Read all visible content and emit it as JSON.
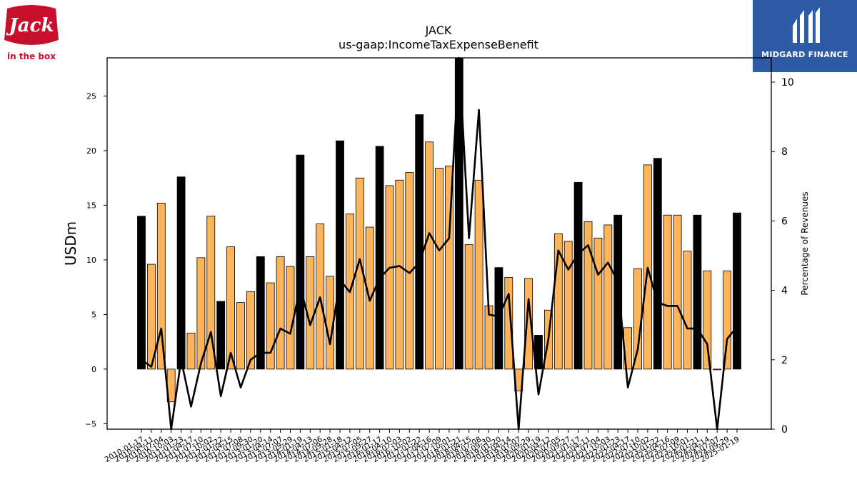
{
  "title": "JACK",
  "subtitle": "us-gaap:IncomeTaxExpenseBenefit",
  "logos": {
    "left_brand": "Jack",
    "left_tagline": "in the box",
    "right_brand": "MIDGARD FINANCE"
  },
  "colors": {
    "annual_bar": "#000000",
    "quarter_bar": "#ffb35a",
    "line": "#000000",
    "brand_red": "#c8102e",
    "brand_blue": "#2d5ba6"
  },
  "chart_data": {
    "type": "bar",
    "ylabel": "USDm",
    "y2label": "Percentage of Revenues",
    "ylim": [
      -5.5,
      28.5
    ],
    "y2lim": [
      0,
      10.7
    ],
    "yticks": [
      -5,
      0,
      5,
      10,
      15,
      20,
      25
    ],
    "y2ticks": [
      0,
      2,
      4,
      6,
      8,
      10
    ],
    "tick_labels": [
      "2010-01-17",
      "2010-04-11",
      "2010-07-04",
      "2010-10-03",
      "2011-01-23",
      "2011-04-17",
      "2011-07-10",
      "2011-10-02",
      "2012-01-22",
      "2012-04-15",
      "2012-07-08",
      "2012-09-30",
      "2013-01-20",
      "2013-04-14",
      "2013-07-07",
      "2013-09-29",
      "2014-01-19",
      "2014-04-13",
      "2014-07-06",
      "2014-09-28",
      "2015-01-18",
      "2015-04-12",
      "2015-07-05",
      "2015-09-27",
      "2016-01-17",
      "2016-04-10",
      "2016-07-03",
      "2016-10-02",
      "2017-01-22",
      "2017-04-16",
      "2017-07-09",
      "2017-10-01",
      "2018-01-21",
      "2018-04-15",
      "2018-07-08",
      "2018-09-30",
      "2019-01-20",
      "2019-04-14",
      "2019-07-07",
      "2019-09-29",
      "2020-01-19",
      "2020-04-12",
      "2020-07-05",
      "2020-09-27",
      "2021-01-17",
      "2021-04-11",
      "2021-07-04",
      "2021-10-03",
      "2022-01-23",
      "2022-04-17",
      "2022-07-10",
      "2022-10-02",
      "2023-01-22",
      "2023-04-16",
      "2023-07-09",
      "2023-10-01",
      "2024-01-21",
      "2024-04-14",
      "2024-07-07",
      "2024-09-29",
      "2025-01-19"
    ],
    "values": [
      14.0,
      9.6,
      15.2,
      -3.0,
      17.6,
      3.3,
      10.2,
      14.0,
      6.2,
      11.2,
      6.1,
      7.1,
      10.3,
      7.9,
      10.3,
      9.4,
      19.6,
      10.3,
      13.3,
      8.5,
      20.9,
      14.2,
      17.5,
      13.0,
      20.4,
      16.8,
      17.3,
      18.0,
      23.3,
      20.8,
      18.4,
      18.6,
      28.5,
      11.4,
      17.3,
      5.8,
      9.3,
      8.4,
      -2.0,
      8.3,
      3.1,
      5.4,
      12.4,
      11.7,
      17.1,
      13.5,
      12.0,
      13.2,
      14.1,
      3.8,
      9.2,
      18.7,
      19.3,
      14.1,
      14.1,
      10.8,
      14.1,
      9.0,
      0.0,
      9.0,
      14.3
    ],
    "annual": [
      1,
      0,
      0,
      0,
      1,
      0,
      0,
      0,
      1,
      0,
      0,
      0,
      1,
      0,
      0,
      0,
      1,
      0,
      0,
      0,
      1,
      0,
      0,
      0,
      1,
      0,
      0,
      0,
      1,
      0,
      0,
      0,
      1,
      0,
      0,
      0,
      1,
      0,
      0,
      0,
      1,
      0,
      0,
      0,
      1,
      0,
      0,
      0,
      1,
      0,
      0,
      0,
      1,
      0,
      0,
      0,
      1,
      0,
      0,
      0,
      1
    ],
    "pct_of_revenue": [
      2.0,
      1.8,
      2.9,
      -0.3,
      2.0,
      0.65,
      1.9,
      2.8,
      0.95,
      2.2,
      1.2,
      2.0,
      2.2,
      2.2,
      2.9,
      2.75,
      4.1,
      3.0,
      3.8,
      2.45,
      4.3,
      3.95,
      4.9,
      3.7,
      4.35,
      4.65,
      4.7,
      4.5,
      4.8,
      5.65,
      5.15,
      5.5,
      11.0,
      5.5,
      9.2,
      3.3,
      3.25,
      3.9,
      -0.2,
      3.75,
      1.0,
      2.6,
      5.15,
      4.6,
      5.05,
      5.3,
      4.45,
      4.8,
      4.25,
      1.2,
      2.3,
      4.65,
      3.65,
      3.55,
      3.55,
      2.9,
      2.9,
      2.45,
      0.0,
      2.6,
      2.95
    ]
  }
}
